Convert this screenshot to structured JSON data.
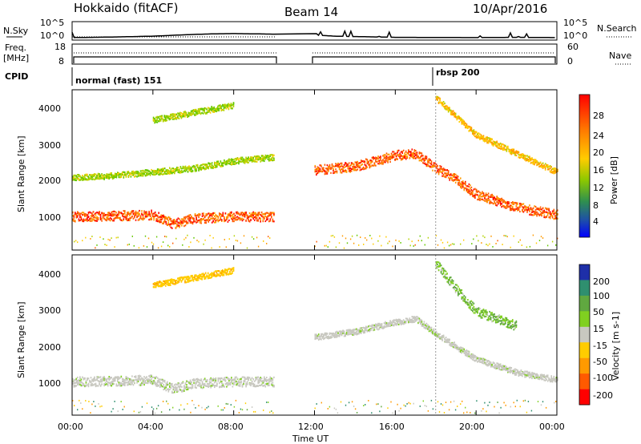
{
  "header": {
    "station": "Hokkaido (fitACF)",
    "beam": "Beam 14",
    "date": "10/Apr/2016"
  },
  "noise_panel": {
    "left_label": "N.Sky",
    "right_label": "N.Search",
    "left_ticks": [
      "10^5",
      "10^0"
    ],
    "right_ticks": [
      "10^5",
      "10^0"
    ]
  },
  "freq_panel": {
    "left_label_1": "Freq.",
    "left_label_2": "[MHz]",
    "right_label": "Nave",
    "left_ticks": [
      "18",
      "8"
    ],
    "right_ticks": [
      "60",
      "0"
    ]
  },
  "cpid": {
    "label": "CPID",
    "segments": [
      {
        "text": "normal (fast) 151",
        "start_hour": 0
      },
      {
        "text": "rbsp 200",
        "start_hour": 18
      }
    ]
  },
  "time_axis": {
    "label": "Time UT",
    "ticks": [
      "00:00",
      "04:00",
      "08:00",
      "12:00",
      "16:00",
      "20:00",
      "00:00"
    ],
    "range_hours": [
      0,
      24
    ],
    "data_gap_hours": [
      10,
      12
    ]
  },
  "range_axis": {
    "label": "Slant Range [km]",
    "ticks": [
      "1000",
      "2000",
      "3000",
      "4000"
    ],
    "range_km": [
      180,
      4500
    ]
  },
  "power_colorbar": {
    "label": "Power [dB]",
    "ticks": [
      "28",
      "24",
      "20",
      "16",
      "12",
      "8",
      "4"
    ],
    "colors": [
      "#ff0000",
      "#ff5a00",
      "#ff9a00",
      "#ffcc00",
      "#b4d200",
      "#64c800",
      "#2f8f4f",
      "#1e4fa8",
      "#0000ff"
    ]
  },
  "velocity_colorbar": {
    "label": "Velocity [m s-1]",
    "ticks": [
      "200",
      "100",
      "50",
      "15",
      "-15",
      "-50",
      "-100",
      "-200"
    ],
    "colors": [
      "#1e2fa8",
      "#2f8f6f",
      "#60a840",
      "#80d020",
      "#c8c8c0",
      "#ffcc00",
      "#ff9a00",
      "#ff5a00",
      "#ff0000"
    ]
  },
  "chart_data": [
    {
      "type": "line",
      "title": "N.Sky",
      "ylabel": "N.Sky",
      "x_hours": [
        0,
        2,
        4,
        6,
        7,
        8,
        9,
        10,
        12,
        13,
        16,
        20,
        22,
        24
      ],
      "values_log10": [
        0.3,
        0.5,
        0.8,
        1.4,
        1.6,
        1.7,
        1.6,
        1.5,
        1.2,
        0.8,
        0.4,
        0.3,
        0.4,
        0.3
      ],
      "ylim": [
        "10^0",
        "10^5"
      ]
    },
    {
      "type": "heatmap",
      "title": "Power [dB]",
      "xlabel": "Time UT",
      "ylabel": "Slant Range [km]",
      "xlim_hours": [
        0,
        24
      ],
      "ylim_km": [
        180,
        4500
      ],
      "bands": [
        {
          "x_hours": [
            0,
            2,
            4,
            5,
            6,
            8,
            10
          ],
          "range_km": [
            1100,
            1120,
            1150,
            900,
            1050,
            1100,
            1100
          ],
          "power_db": 26
        },
        {
          "x_hours": [
            0,
            2,
            4,
            6,
            8,
            10
          ],
          "range_km": [
            2150,
            2200,
            2300,
            2400,
            2600,
            2700
          ],
          "power_db": 14
        },
        {
          "x_hours": [
            4,
            5,
            6,
            7,
            8
          ],
          "range_km": [
            3700,
            3800,
            3900,
            4000,
            4100
          ],
          "power_db": 14
        },
        {
          "x_hours": [
            12,
            13,
            14,
            15,
            16,
            17,
            18,
            19,
            20,
            22,
            24
          ],
          "range_km": [
            2350,
            2400,
            2450,
            2600,
            2750,
            2800,
            2400,
            2100,
            1700,
            1350,
            1150
          ],
          "power_db": 26
        },
        {
          "x_hours": [
            18,
            19,
            20,
            22,
            24
          ],
          "range_km": [
            4300,
            3800,
            3300,
            2800,
            2300
          ],
          "power_db": 20
        }
      ]
    },
    {
      "type": "heatmap",
      "title": "Velocity [m s-1]",
      "xlabel": "Time UT",
      "ylabel": "Slant Range [km]",
      "xlim_hours": [
        0,
        24
      ],
      "ylim_km": [
        180,
        4500
      ],
      "bands": [
        {
          "x_hours": [
            0,
            2,
            4,
            5,
            6,
            8,
            10
          ],
          "range_km": [
            1100,
            1120,
            1150,
            900,
            1050,
            1100,
            1100
          ],
          "velocity_ms": 0
        },
        {
          "x_hours": [
            4,
            5,
            6,
            7,
            8
          ],
          "range_km": [
            3700,
            3800,
            3900,
            4000,
            4100
          ],
          "velocity_ms": -60
        },
        {
          "x_hours": [
            12,
            14,
            16,
            17,
            18,
            20,
            22,
            24
          ],
          "range_km": [
            2300,
            2450,
            2700,
            2800,
            2400,
            1700,
            1350,
            1150
          ],
          "velocity_ms": 0
        },
        {
          "x_hours": [
            18,
            19,
            20,
            22
          ],
          "range_km": [
            4300,
            3600,
            3000,
            2600
          ],
          "velocity_ms": 30
        }
      ]
    }
  ]
}
